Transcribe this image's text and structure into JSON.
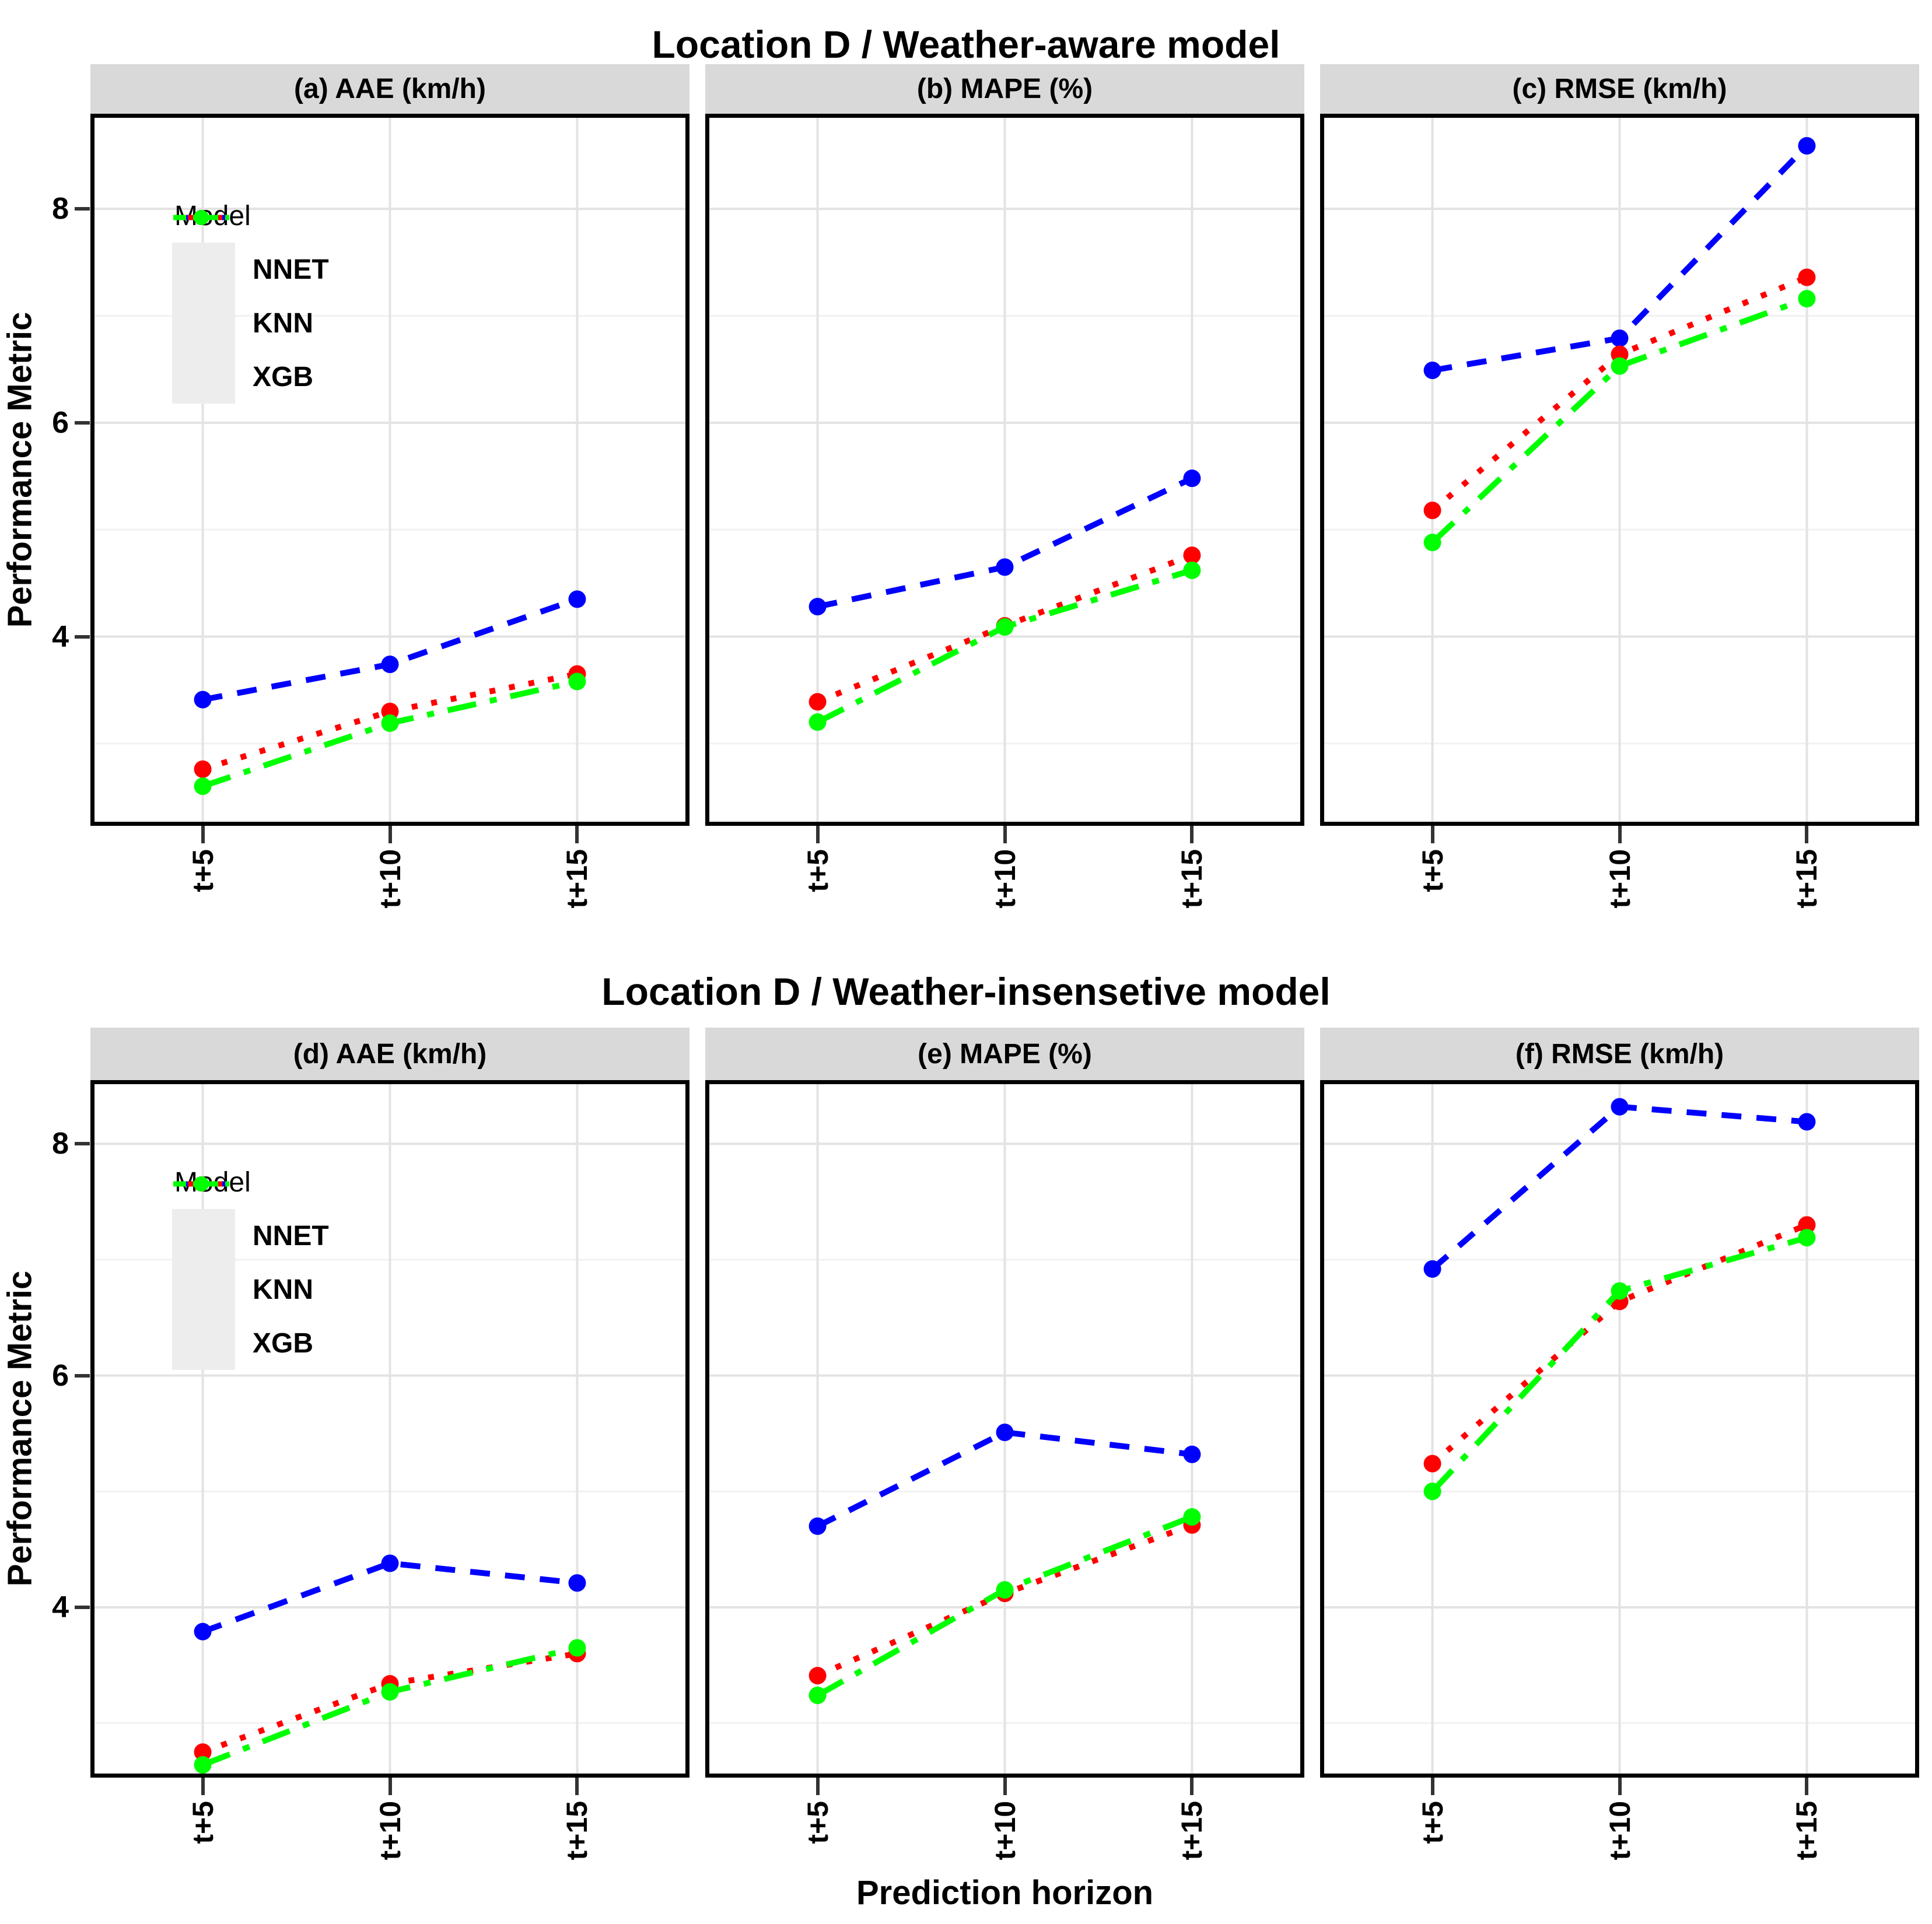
{
  "titles": {
    "top": "Location D / Weather-aware model",
    "bottom": "Location D / Weather-insensetive model"
  },
  "axis": {
    "y_label": "Performance Metric",
    "x_label": "Prediction horizon",
    "y_tick_labels": [
      "8",
      "6",
      "4"
    ],
    "y_tick_values": [
      8,
      6,
      4
    ],
    "y_minor_values": [
      3,
      5,
      7
    ],
    "x_tick_labels": [
      "t+5",
      "t+10",
      "t+15"
    ]
  },
  "legend": {
    "title": "Model",
    "items": [
      {
        "label": "NNET",
        "color": "#0000ff",
        "style": "dashed"
      },
      {
        "label": "KNN",
        "color": "#ff0000",
        "style": "dotted"
      },
      {
        "label": "XGB",
        "color": "#00ff00",
        "style": "dashdot"
      }
    ]
  },
  "colors": {
    "strip_bg": "#d9d9d9",
    "grid_major": "#e3e3e3",
    "grid_minor": "#f1f1f1",
    "panel_border": "#000000",
    "legend_key_bg": "#ededed",
    "nnet": "#0000ff",
    "knn": "#ff0000",
    "xgb": "#00ff00"
  },
  "chart_data": [
    {
      "type": "line",
      "row_title": "Location D / Weather-aware model",
      "panel": "(a) AAE (km/h)",
      "categories": [
        "t+5",
        "t+10",
        "t+15"
      ],
      "series": [
        {
          "name": "NNET",
          "values": [
            3.41,
            3.74,
            4.35
          ]
        },
        {
          "name": "KNN",
          "values": [
            2.76,
            3.3,
            3.65
          ]
        },
        {
          "name": "XGB",
          "values": [
            2.6,
            3.19,
            3.58
          ]
        }
      ],
      "ylim": [
        2.23,
        8.89
      ],
      "yticks": [
        4,
        6,
        8
      ],
      "legend_shown": true
    },
    {
      "type": "line",
      "row_title": "Location D / Weather-aware model",
      "panel": "(b) MAPE (%)",
      "categories": [
        "t+5",
        "t+10",
        "t+15"
      ],
      "series": [
        {
          "name": "NNET",
          "values": [
            4.28,
            4.65,
            5.48
          ]
        },
        {
          "name": "KNN",
          "values": [
            3.39,
            4.1,
            4.76
          ]
        },
        {
          "name": "XGB",
          "values": [
            3.2,
            4.09,
            4.62
          ]
        }
      ],
      "ylim": [
        2.23,
        8.89
      ],
      "yticks": [
        4,
        6,
        8
      ],
      "legend_shown": false
    },
    {
      "type": "line",
      "row_title": "Location D / Weather-aware model",
      "panel": "(c) RMSE (km/h)",
      "categories": [
        "t+5",
        "t+10",
        "t+15"
      ],
      "series": [
        {
          "name": "NNET",
          "values": [
            6.49,
            6.79,
            8.59
          ]
        },
        {
          "name": "KNN",
          "values": [
            5.18,
            6.64,
            7.36
          ]
        },
        {
          "name": "XGB",
          "values": [
            4.88,
            6.53,
            7.16
          ]
        }
      ],
      "ylim": [
        2.23,
        8.89
      ],
      "yticks": [
        4,
        6,
        8
      ],
      "legend_shown": false
    },
    {
      "type": "line",
      "row_title": "Location D / Weather-insensetive model",
      "panel": "(d) AAE (km/h)",
      "categories": [
        "t+5",
        "t+10",
        "t+15"
      ],
      "series": [
        {
          "name": "NNET",
          "values": [
            3.79,
            4.38,
            4.21
          ]
        },
        {
          "name": "KNN",
          "values": [
            2.75,
            3.34,
            3.6
          ]
        },
        {
          "name": "XGB",
          "values": [
            2.64,
            3.27,
            3.65
          ]
        }
      ],
      "ylim": [
        2.53,
        8.55
      ],
      "yticks": [
        4,
        6,
        8
      ],
      "legend_shown": true
    },
    {
      "type": "line",
      "row_title": "Location D / Weather-insensetive model",
      "panel": "(e) MAPE (%)",
      "categories": [
        "t+5",
        "t+10",
        "t+15"
      ],
      "series": [
        {
          "name": "NNET",
          "values": [
            4.7,
            5.51,
            5.32
          ]
        },
        {
          "name": "KNN",
          "values": [
            3.41,
            4.12,
            4.71
          ]
        },
        {
          "name": "XGB",
          "values": [
            3.24,
            4.15,
            4.78
          ]
        }
      ],
      "ylim": [
        2.53,
        8.55
      ],
      "yticks": [
        4,
        6,
        8
      ],
      "legend_shown": false
    },
    {
      "type": "line",
      "row_title": "Location D / Weather-insensetive model",
      "panel": "(f) RMSE (km/h)",
      "categories": [
        "t+5",
        "t+10",
        "t+15"
      ],
      "series": [
        {
          "name": "NNET",
          "values": [
            6.92,
            8.32,
            8.19
          ]
        },
        {
          "name": "KNN",
          "values": [
            5.24,
            6.64,
            7.3
          ]
        },
        {
          "name": "XGB",
          "values": [
            5.0,
            6.73,
            7.19
          ]
        }
      ],
      "ylim": [
        2.53,
        8.55
      ],
      "yticks": [
        4,
        6,
        8
      ],
      "legend_shown": false
    }
  ]
}
